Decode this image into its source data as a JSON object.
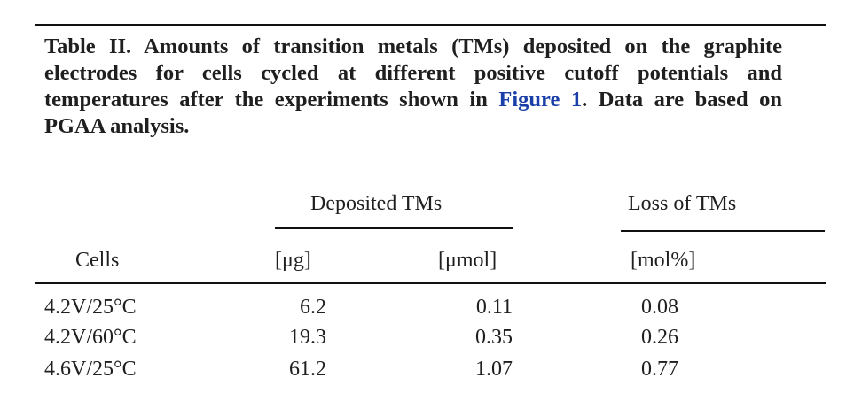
{
  "caption": {
    "lead": "Table II. Amounts of transition metals (TMs) deposited on the graphite electrodes for cells cycled at different positive cutoff potentials and temperatures after the experiments shown in ",
    "figure_ref": "Figure 1",
    "tail": ". Data are based on PGAA analysis."
  },
  "table": {
    "group_headers": {
      "deposited": "Deposited TMs",
      "loss": "Loss of TMs"
    },
    "columns": {
      "cells": "Cells",
      "mass": "[μg]",
      "amount": "[μmol]",
      "loss": "[mol%]"
    },
    "rows": [
      {
        "cells": "4.2V/25°C",
        "mass": "6.2",
        "amount": "0.11",
        "loss": "0.08"
      },
      {
        "cells": "4.2V/60°C",
        "mass": "19.3",
        "amount": "0.35",
        "loss": "0.26"
      },
      {
        "cells": "4.6V/25°C",
        "mass": "61.2",
        "amount": "1.07",
        "loss": "0.77"
      }
    ]
  }
}
